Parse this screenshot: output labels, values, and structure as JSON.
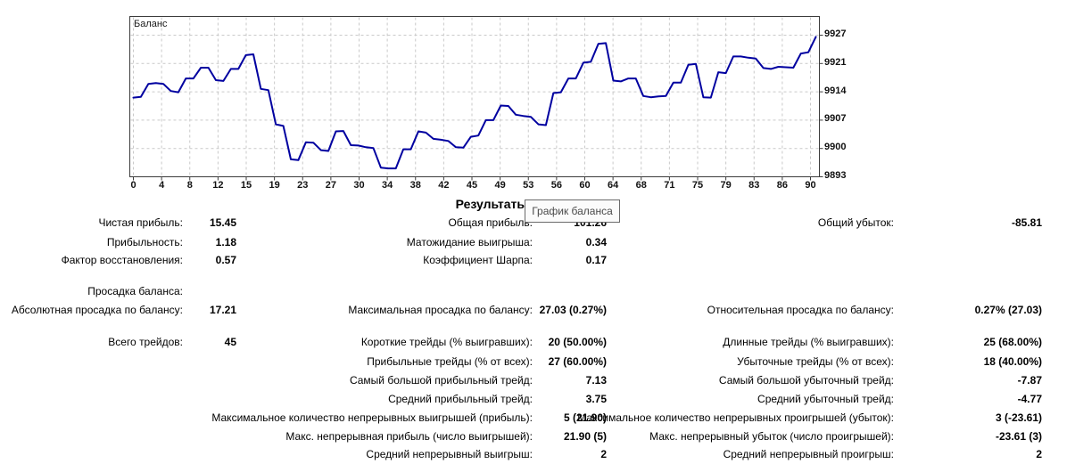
{
  "chart": {
    "title": "Баланс",
    "tooltip": "График баланса",
    "line_color": "#0000A0",
    "grid_color": "#c9c9c9",
    "border_color": "#3c3c3c",
    "y_ticks": [
      "9927",
      "9921",
      "9914",
      "9907",
      "9900",
      "9893"
    ],
    "x_ticks": [
      "0",
      "4",
      "8",
      "12",
      "15",
      "19",
      "23",
      "27",
      "30",
      "34",
      "38",
      "42",
      "45",
      "49",
      "53",
      "56",
      "60",
      "64",
      "68",
      "71",
      "75",
      "79",
      "83",
      "86",
      "90"
    ]
  },
  "chart_data": {
    "type": "line",
    "title": "Баланс",
    "xlabel": "",
    "ylabel": "",
    "x_start": 0,
    "x_end": 91,
    "ylim": [
      9893,
      9931
    ],
    "legend": "none",
    "grid": "on",
    "series": [
      {
        "name": "Баланс",
        "values": [
          9912.0,
          9912.2,
          9915.3,
          9915.5,
          9915.3,
          9913.6,
          9913.3,
          9916.6,
          9916.6,
          9919.2,
          9919.2,
          9916.2,
          9916.0,
          9918.9,
          9918.9,
          9922.2,
          9922.4,
          9914.1,
          9913.8,
          9905.6,
          9905.2,
          9897.2,
          9897.0,
          9901.3,
          9901.2,
          9899.4,
          9899.2,
          9903.9,
          9904.0,
          9900.6,
          9900.5,
          9900.1,
          9899.9,
          9895.2,
          9895.0,
          9895.0,
          9899.6,
          9899.6,
          9903.9,
          9903.6,
          9902.1,
          9901.9,
          9901.6,
          9900.1,
          9900.0,
          9902.6,
          9902.9,
          9906.6,
          9906.6,
          9910.1,
          9910.0,
          9907.9,
          9907.6,
          9907.4,
          9905.6,
          9905.4,
          9913.1,
          9913.3,
          9916.6,
          9916.6,
          9920.4,
          9920.6,
          9924.9,
          9925.1,
          9916.1,
          9915.9,
          9916.6,
          9916.6,
          9912.4,
          9912.1,
          9912.3,
          9912.4,
          9915.6,
          9915.6,
          9919.9,
          9920.1,
          9912.1,
          9912.0,
          9918.1,
          9917.9,
          9921.9,
          9921.9,
          9921.6,
          9921.4,
          9919.1,
          9918.9,
          9919.4,
          9919.3,
          9919.2,
          9922.6,
          9922.9,
          9926.6
        ]
      }
    ]
  },
  "results": {
    "header": "Результаты",
    "rows": [
      [
        "Чистая прибыль:",
        "15.45",
        "Общая прибыль:",
        "101.26",
        "Общий убыток:",
        "-85.81"
      ],
      [
        "Прибыльность:",
        "1.18",
        "Матожидание выигрыша:",
        "0.34",
        "",
        ""
      ],
      [
        "Фактор восстановления:",
        "0.57",
        "Коэффициент Шарпа:",
        "0.17",
        "",
        ""
      ],
      [
        "Просадка баланса:",
        "",
        "",
        "",
        "",
        ""
      ],
      [
        "Абсолютная просадка по балансу:",
        "17.21",
        "Максимальная просадка по балансу:",
        "27.03 (0.27%)",
        "Относительная просадка по балансу:",
        "0.27% (27.03)"
      ],
      [
        "Всего трейдов:",
        "45",
        "Короткие трейды (% выигравших):",
        "20 (50.00%)",
        "Длинные трейды (% выигравших):",
        "25 (68.00%)"
      ],
      [
        "",
        "",
        "Прибыльные трейды (% от всех):",
        "27 (60.00%)",
        "Убыточные трейды (% от всех):",
        "18 (40.00%)"
      ],
      [
        "",
        "",
        "Самый большой прибыльный трейд:",
        "7.13",
        "Самый большой убыточный трейд:",
        "-7.87"
      ],
      [
        "",
        "",
        "Средний прибыльный трейд:",
        "3.75",
        "Средний убыточный трейд:",
        "-4.77"
      ],
      [
        "",
        "",
        "Максимальное количество непрерывных выигрышей (прибыль):",
        "5 (21.90)",
        "Максимальное количество непрерывных проигрышей (убыток):",
        "3 (-23.61)"
      ],
      [
        "",
        "",
        "Макс. непрерывная прибыль (число выигрышей):",
        "21.90 (5)",
        "Макс. непрерывный убыток (число проигрышей):",
        "-23.61 (3)"
      ],
      [
        "",
        "",
        "Средний непрерывный выигрыш:",
        "2",
        "Средний непрерывный проигрыш:",
        "2"
      ]
    ]
  }
}
